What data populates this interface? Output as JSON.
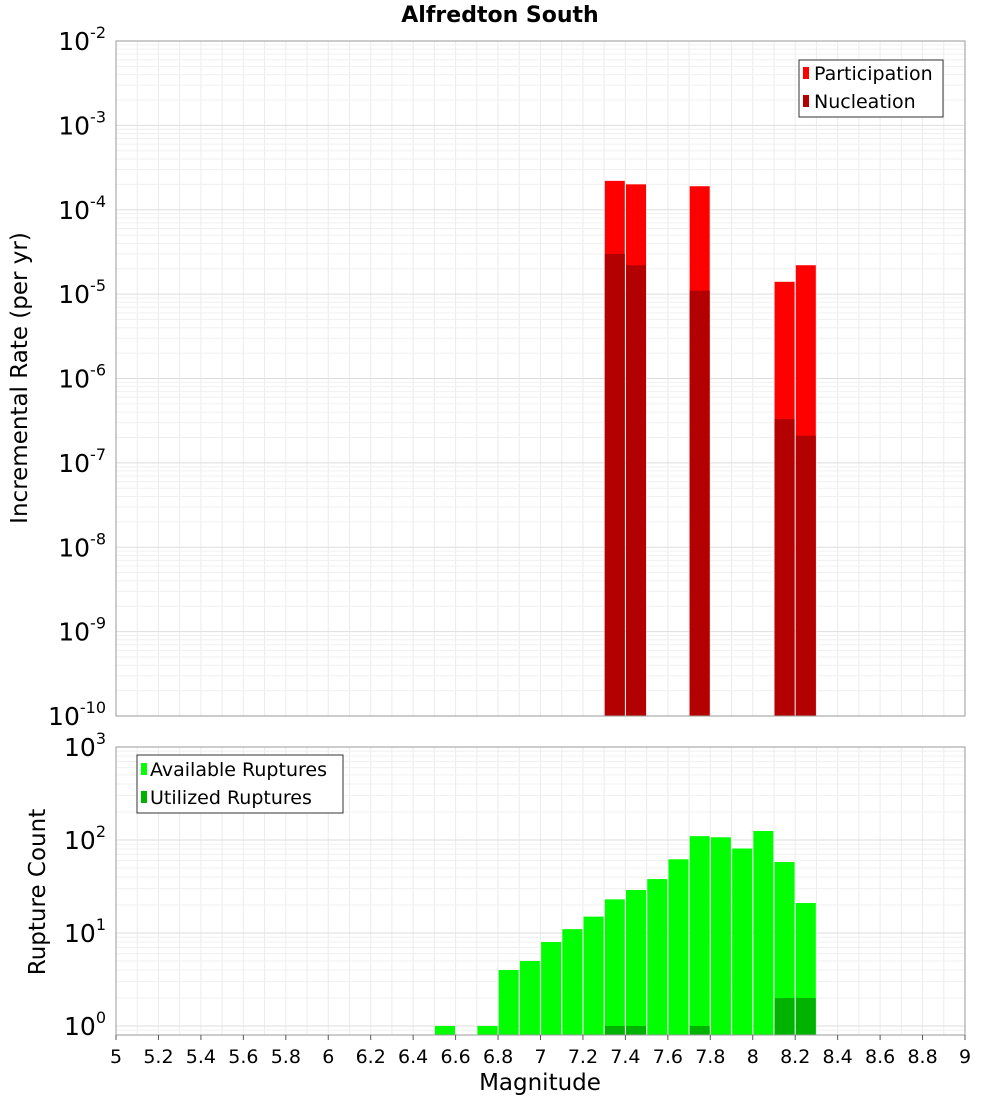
{
  "chart_data": [
    {
      "type": "bar",
      "title": "Alfredton South",
      "ylabel": "Incremental Rate (per yr)",
      "xlabel": "",
      "xlim": [
        5,
        9
      ],
      "ylim": [
        1e-10,
        0.01
      ],
      "yscale": "log",
      "ytick_exponents": [
        -2,
        -3,
        -4,
        -5,
        -6,
        -7,
        -8,
        -9,
        -10
      ],
      "grid": true,
      "legend": "top-right",
      "colors": {
        "participation": "#ff0000",
        "nucleation": "#b30000"
      },
      "series": [
        {
          "name": "Participation",
          "x": [
            7.35,
            7.45,
            7.75,
            8.15,
            8.25
          ],
          "values": [
            0.00022,
            0.0002,
            0.00019,
            1.4e-05,
            2.2e-05
          ]
        },
        {
          "name": "Nucleation",
          "x": [
            7.35,
            7.45,
            7.75,
            8.15,
            8.25
          ],
          "values": [
            3e-05,
            2.2e-05,
            1.1e-05,
            3.3e-07,
            2.1e-07
          ]
        }
      ]
    },
    {
      "type": "bar",
      "title": "",
      "ylabel": "Rupture Count",
      "xlabel": "Magnitude",
      "xlim": [
        5,
        9
      ],
      "ylim": [
        0.8,
        1000
      ],
      "yscale": "log",
      "ytick_exponents": [
        3,
        2,
        1,
        0
      ],
      "xticks": [
        "5",
        "5.2",
        "5.4",
        "5.6",
        "5.8",
        "6",
        "6.2",
        "6.4",
        "6.6",
        "6.8",
        "7",
        "7.2",
        "7.4",
        "7.6",
        "7.8",
        "8",
        "8.2",
        "8.4",
        "8.6",
        "8.8",
        "9"
      ],
      "grid": true,
      "legend": "top-left",
      "colors": {
        "available": "#00ff00",
        "utilized": "#00b300"
      },
      "series": [
        {
          "name": "Available Ruptures",
          "x": [
            6.55,
            6.75,
            6.85,
            6.95,
            7.05,
            7.15,
            7.25,
            7.35,
            7.45,
            7.55,
            7.65,
            7.75,
            7.85,
            7.95,
            8.05,
            8.15,
            8.25
          ],
          "values": [
            1,
            1,
            4,
            5,
            8,
            11,
            15,
            23,
            29,
            38,
            62,
            110,
            107,
            81,
            125,
            58,
            21
          ]
        },
        {
          "name": "Utilized Ruptures",
          "x": [
            7.35,
            7.45,
            7.75,
            8.15,
            8.25
          ],
          "values": [
            1,
            1,
            1,
            2,
            2
          ]
        }
      ]
    }
  ]
}
